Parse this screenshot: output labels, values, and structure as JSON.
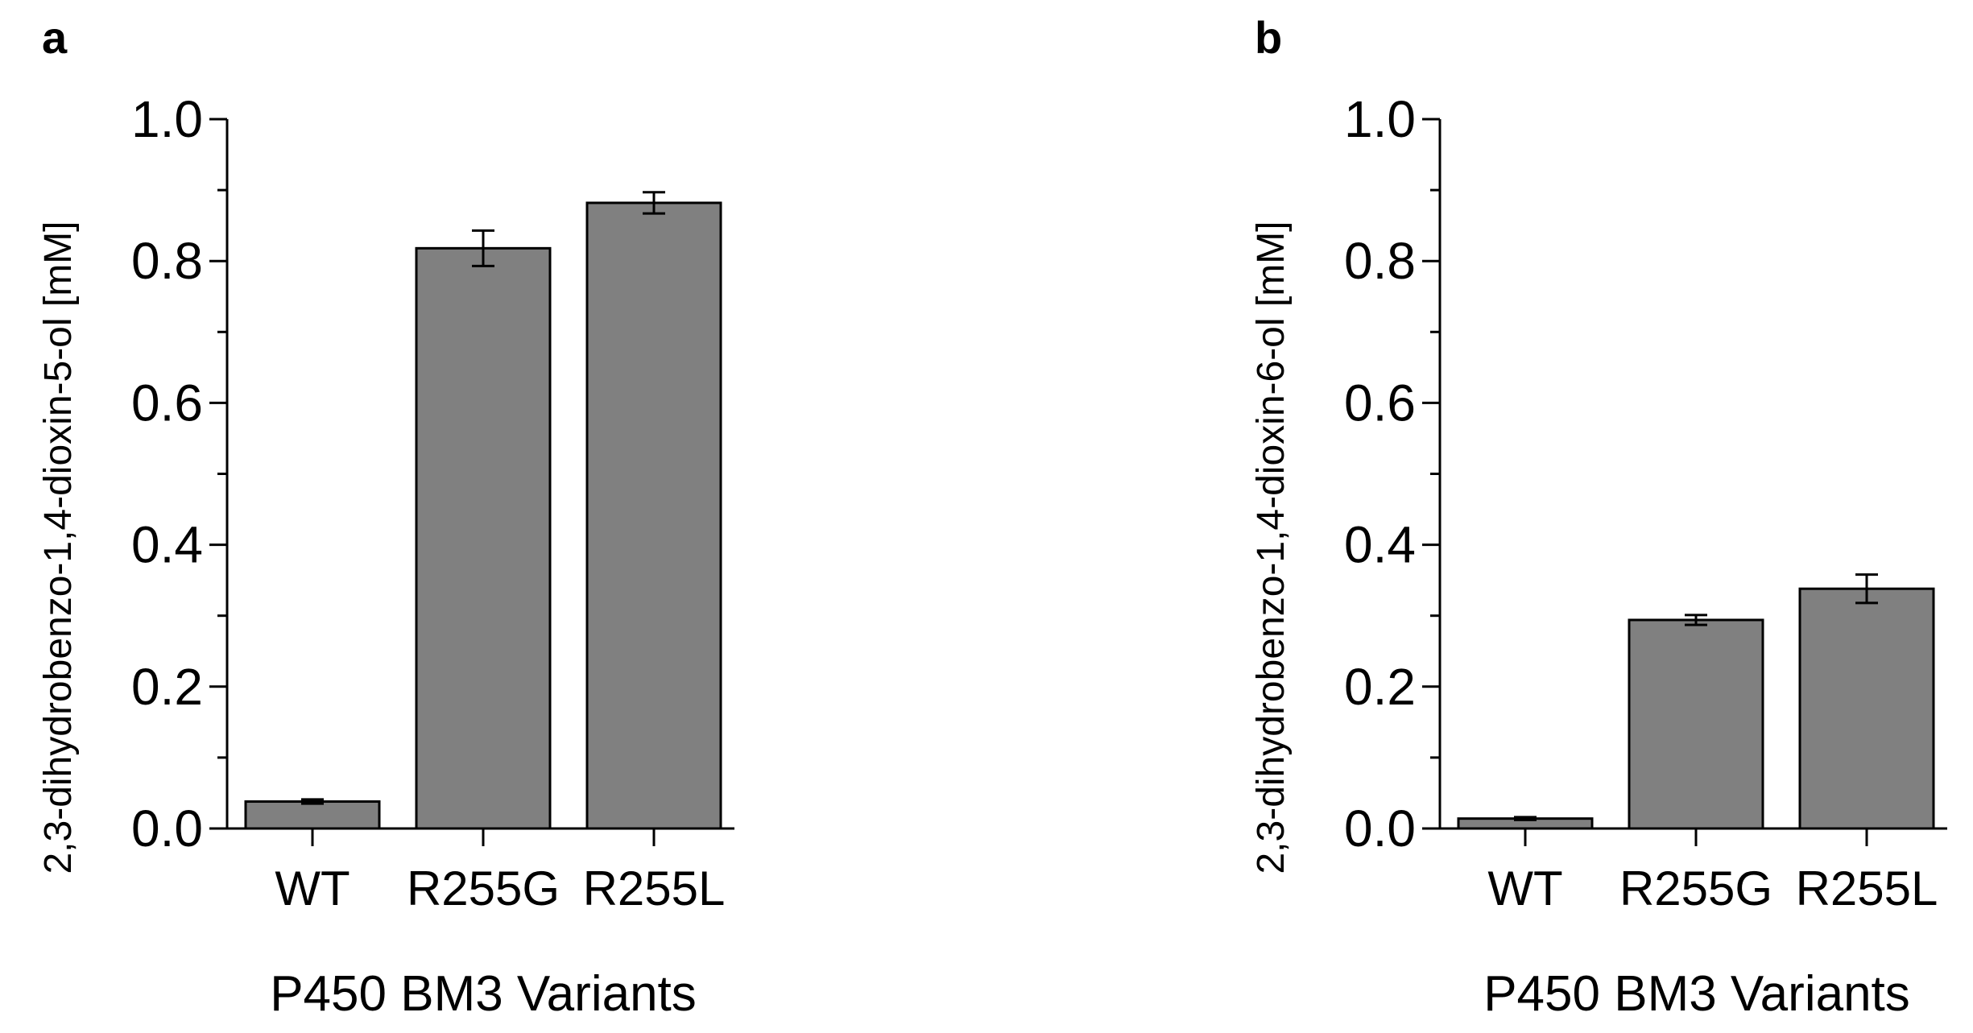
{
  "chart_data": [
    {
      "panel": "a",
      "type": "bar",
      "categories": [
        "WT",
        "R255G",
        "R255L"
      ],
      "values": [
        0.038,
        0.818,
        0.882
      ],
      "errors": [
        0.003,
        0.025,
        0.015
      ],
      "xlabel": "P450 BM3 Variants",
      "ylabel": "2,3-dihydrobenzo-1,4-dioxin-5-ol [mM]",
      "ylim": [
        0,
        1.0
      ],
      "yticks": [
        "0.0",
        "0.2",
        "0.4",
        "0.6",
        "0.8",
        "1.0"
      ],
      "bar_color": "#808080"
    },
    {
      "panel": "b",
      "type": "bar",
      "categories": [
        "WT",
        "R255G",
        "R255L"
      ],
      "values": [
        0.014,
        0.294,
        0.338
      ],
      "errors": [
        0.002,
        0.007,
        0.02
      ],
      "xlabel": "P450 BM3 Variants",
      "ylabel": "2,3-dihydrobenzo-1,4-dioxin-6-ol [mM]",
      "ylim": [
        0,
        1.0
      ],
      "yticks": [
        "0.0",
        "0.2",
        "0.4",
        "0.6",
        "0.8",
        "1.0"
      ],
      "bar_color": "#808080"
    }
  ]
}
